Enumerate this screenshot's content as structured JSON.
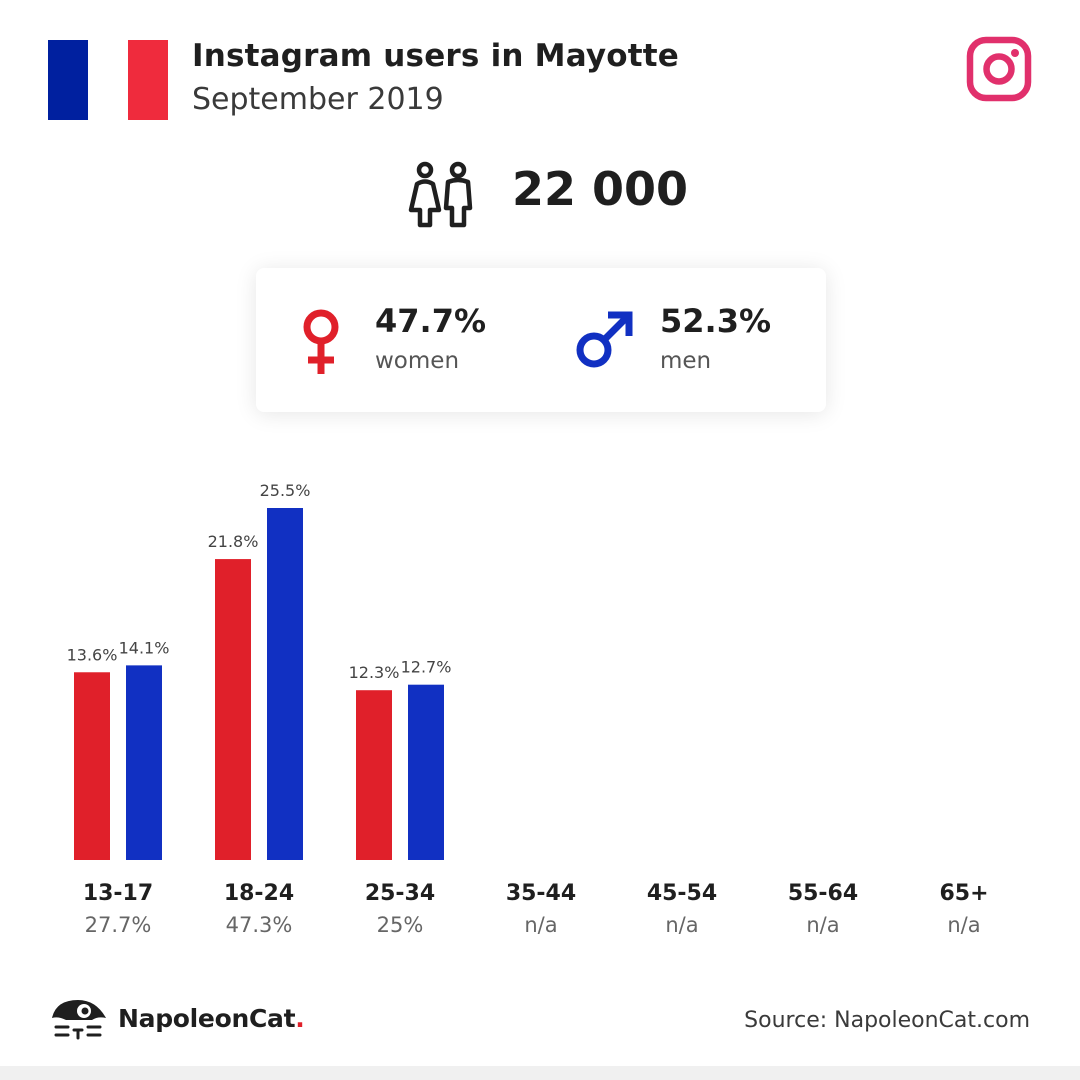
{
  "header": {
    "title": "Instagram users in Mayotte",
    "subtitle": "September 2019"
  },
  "flag": {
    "colors": [
      "#00209f",
      "#ffffff",
      "#ef2b3d"
    ]
  },
  "icons": {
    "platform": "instagram-icon",
    "users": "users-icon",
    "women": "female-symbol-icon",
    "men": "male-symbol-icon",
    "brand": "napoleoncat-logo"
  },
  "total": {
    "value": "22 000"
  },
  "gender": {
    "women": {
      "pct": "47.7%",
      "label": "women",
      "color": "#e0202a"
    },
    "men": {
      "pct": "52.3%",
      "label": "men",
      "color": "#1130c2"
    }
  },
  "chart_data": {
    "type": "bar",
    "categories": [
      "13-17",
      "18-24",
      "25-34",
      "35-44",
      "45-54",
      "55-64",
      "65+"
    ],
    "totals": [
      "27.7%",
      "47.3%",
      "25%",
      "n/a",
      "n/a",
      "n/a",
      "n/a"
    ],
    "series": [
      {
        "color": "#e0202a",
        "values": [
          13.6,
          21.8,
          12.3,
          null,
          null,
          null,
          null
        ]
      },
      {
        "color": "#1130c2",
        "values": [
          14.1,
          25.5,
          12.7,
          null,
          null,
          null,
          null
        ]
      }
    ],
    "ylim": [
      0,
      25.5
    ]
  },
  "footer": {
    "brand_name": "NapoleonCat",
    "brand_dot": ".",
    "source": "Source: NapoleonCat.com"
  }
}
